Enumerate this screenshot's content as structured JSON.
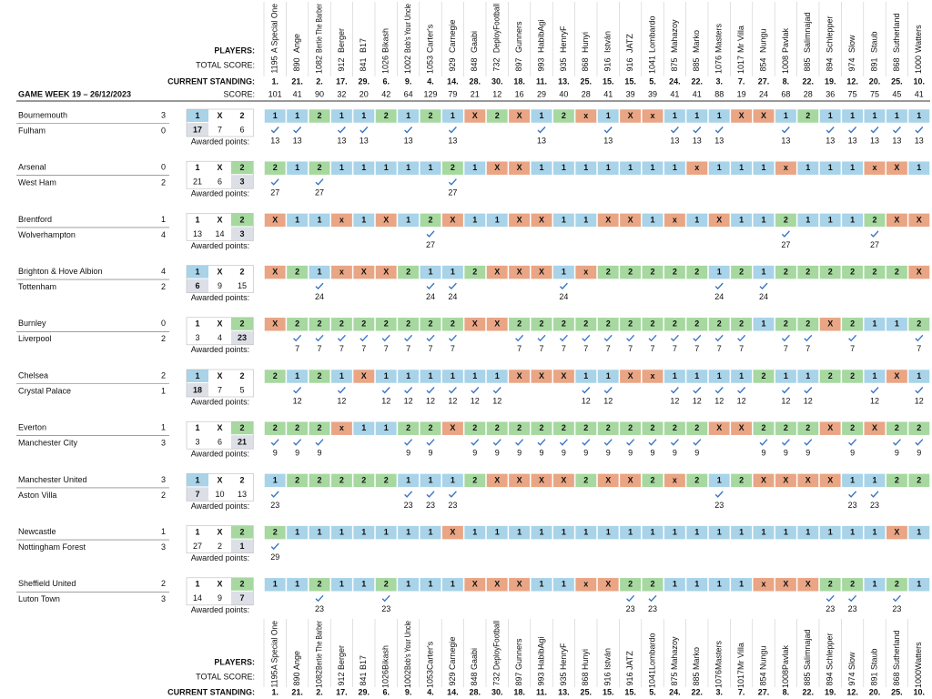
{
  "header": {
    "players_label": "PLAYERS:",
    "total_score_label": "TOTAL SCORE:",
    "standing_label": "CURRENT STANDING:",
    "game_week": "GAME WEEK 19 – 26/12/2023",
    "score_label": "SCORE:",
    "odds_labels": [
      "1",
      "X",
      "2"
    ],
    "awarded_label": "Awarded points:"
  },
  "players": [
    {
      "name": "A Special One",
      "total": 1195,
      "standing": "1.",
      "score": 101
    },
    {
      "name": "Ange",
      "total": 890,
      "standing": "21.",
      "score": 41
    },
    {
      "name": "Bertie The Barber",
      "total": 1082,
      "standing": "2.",
      "score": 90
    },
    {
      "name": "Berger",
      "total": 912,
      "standing": "17.",
      "score": 32
    },
    {
      "name": "B17",
      "total": 841,
      "standing": "29.",
      "score": 20
    },
    {
      "name": "Bikash",
      "total": 1026,
      "standing": "6.",
      "score": 42
    },
    {
      "name": "Bob's Your Uncle",
      "total": 1002,
      "standing": "9.",
      "score": 64
    },
    {
      "name": "Carter's",
      "total": 1053,
      "standing": "4.",
      "score": 129
    },
    {
      "name": "Carnegie",
      "total": 929,
      "standing": "14.",
      "score": 79
    },
    {
      "name": "Gaabi",
      "total": 848,
      "standing": "28.",
      "score": 21
    },
    {
      "name": "DeployFootball",
      "total": 732,
      "standing": "30.",
      "score": 12
    },
    {
      "name": "Gunners",
      "total": 897,
      "standing": "18.",
      "score": 16
    },
    {
      "name": "HabibAgi",
      "total": 993,
      "standing": "11.",
      "score": 29
    },
    {
      "name": "HenryF",
      "total": 935,
      "standing": "13.",
      "score": 40
    },
    {
      "name": "Hunyi",
      "total": 868,
      "standing": "25.",
      "score": 28
    },
    {
      "name": "István",
      "total": 916,
      "standing": "15.",
      "score": 41
    },
    {
      "name": "JATZ",
      "total": 916,
      "standing": "15.",
      "score": 39
    },
    {
      "name": "Lombardo",
      "total": 1041,
      "standing": "5.",
      "score": 39
    },
    {
      "name": "Mahazoy",
      "total": 875,
      "standing": "24.",
      "score": 41
    },
    {
      "name": "Marko",
      "total": 885,
      "standing": "22.",
      "score": 41
    },
    {
      "name": "Masters",
      "total": 1076,
      "standing": "3.",
      "score": 88
    },
    {
      "name": "Mr Villa",
      "total": 1017,
      "standing": "7.",
      "score": 19
    },
    {
      "name": "Nungu",
      "total": 854,
      "standing": "27.",
      "score": 24
    },
    {
      "name": "Pavlak",
      "total": 1008,
      "standing": "8.",
      "score": 68
    },
    {
      "name": "Salimnajad",
      "total": 885,
      "standing": "22.",
      "score": 28
    },
    {
      "name": "Schlepper",
      "total": 894,
      "standing": "19.",
      "score": 36
    },
    {
      "name": "Slow",
      "total": 974,
      "standing": "12.",
      "score": 75
    },
    {
      "name": "Staub",
      "total": 891,
      "standing": "20.",
      "score": 75
    },
    {
      "name": "Sutherland",
      "total": 868,
      "standing": "25.",
      "score": 45
    },
    {
      "name": "Watters",
      "total": 1000,
      "standing": "10.",
      "score": 41
    }
  ],
  "matches": [
    {
      "home": "Bournemouth",
      "home_goals": 3,
      "away": "Fulham",
      "away_goals": 0,
      "odds": [
        17,
        7,
        6
      ],
      "result": "1",
      "points": 13,
      "picks": [
        "1",
        "1",
        "2",
        "1",
        "1",
        "2",
        "1",
        "2",
        "1",
        "X",
        "2",
        "X",
        "1",
        "2",
        "x",
        "1",
        "X",
        "x",
        "1",
        "1",
        "1",
        "X",
        "X",
        "1",
        "2",
        "1",
        "1",
        "1",
        "1",
        "1"
      ]
    },
    {
      "home": "Arsenal",
      "home_goals": 0,
      "away": "West Ham",
      "away_goals": 2,
      "odds": [
        21,
        6,
        3
      ],
      "result": "2",
      "points": 27,
      "picks": [
        "2",
        "1",
        "2",
        "1",
        "1",
        "1",
        "1",
        "1",
        "2",
        "1",
        "X",
        "X",
        "1",
        "1",
        "1",
        "1",
        "1",
        "1",
        "1",
        "x",
        "1",
        "1",
        "1",
        "x",
        "1",
        "1",
        "1",
        "x",
        "X",
        "1"
      ]
    },
    {
      "home": "Brentford",
      "home_goals": 1,
      "away": "Wolverhampton",
      "away_goals": 4,
      "odds": [
        13,
        14,
        3
      ],
      "result": "2",
      "points": 27,
      "picks": [
        "X",
        "1",
        "1",
        "x",
        "1",
        "X",
        "1",
        "2",
        "X",
        "1",
        "1",
        "X",
        "X",
        "1",
        "1",
        "X",
        "X",
        "1",
        "x",
        "1",
        "X",
        "1",
        "1",
        "2",
        "1",
        "1",
        "1",
        "2",
        "X",
        "X"
      ]
    },
    {
      "home": "Brighton & Hove Albion",
      "home_goals": 4,
      "away": "Tottenham",
      "away_goals": 2,
      "odds": [
        6,
        9,
        15
      ],
      "result": "1",
      "points": 24,
      "picks": [
        "X",
        "2",
        "1",
        "x",
        "X",
        "X",
        "2",
        "1",
        "1",
        "2",
        "X",
        "X",
        "X",
        "1",
        "x",
        "2",
        "2",
        "2",
        "2",
        "2",
        "1",
        "2",
        "1",
        "2",
        "2",
        "2",
        "2",
        "2",
        "2",
        "X"
      ]
    },
    {
      "home": "Burnley",
      "home_goals": 0,
      "away": "Liverpool",
      "away_goals": 2,
      "odds": [
        3,
        4,
        23
      ],
      "result": "2",
      "points": 7,
      "picks": [
        "X",
        "2",
        "2",
        "2",
        "2",
        "2",
        "2",
        "2",
        "2",
        "X",
        "X",
        "2",
        "2",
        "2",
        "2",
        "2",
        "2",
        "2",
        "2",
        "2",
        "2",
        "2",
        "1",
        "2",
        "2",
        "X",
        "2",
        "1",
        "1",
        "2"
      ]
    },
    {
      "home": "Chelsea",
      "home_goals": 2,
      "away": "Crystal Palace",
      "away_goals": 1,
      "odds": [
        18,
        7,
        5
      ],
      "result": "1",
      "points": 12,
      "picks": [
        "2",
        "1",
        "2",
        "1",
        "X",
        "1",
        "1",
        "1",
        "1",
        "1",
        "1",
        "X",
        "X",
        "X",
        "1",
        "1",
        "X",
        "x",
        "1",
        "1",
        "1",
        "1",
        "2",
        "1",
        "1",
        "2",
        "2",
        "1",
        "X",
        "1"
      ]
    },
    {
      "home": "Everton",
      "home_goals": 1,
      "away": "Manchester City",
      "away_goals": 3,
      "odds": [
        3,
        6,
        21
      ],
      "result": "2",
      "points": 9,
      "picks": [
        "2",
        "2",
        "2",
        "x",
        "1",
        "1",
        "2",
        "2",
        "X",
        "2",
        "2",
        "2",
        "2",
        "2",
        "2",
        "2",
        "2",
        "2",
        "2",
        "2",
        "X",
        "X",
        "2",
        "2",
        "2",
        "X",
        "2",
        "X",
        "2",
        "2"
      ]
    },
    {
      "home": "Manchester United",
      "home_goals": 3,
      "away": "Aston Villa",
      "away_goals": 2,
      "odds": [
        7,
        10,
        13
      ],
      "result": "1",
      "points": 23,
      "picks": [
        "1",
        "2",
        "2",
        "2",
        "2",
        "2",
        "1",
        "1",
        "1",
        "2",
        "X",
        "X",
        "X",
        "X",
        "2",
        "X",
        "X",
        "2",
        "x",
        "2",
        "1",
        "2",
        "X",
        "X",
        "X",
        "X",
        "1",
        "1",
        "2",
        "2"
      ]
    },
    {
      "home": "Newcastle",
      "home_goals": 1,
      "away": "Nottingham Forest",
      "away_goals": 3,
      "odds": [
        27,
        2,
        1
      ],
      "result": "2",
      "points": 29,
      "picks": [
        "2",
        "1",
        "1",
        "1",
        "1",
        "1",
        "1",
        "1",
        "X",
        "1",
        "1",
        "1",
        "1",
        "1",
        "1",
        "1",
        "1",
        "1",
        "1",
        "1",
        "1",
        "1",
        "1",
        "1",
        "1",
        "1",
        "1",
        "1",
        "X",
        "1"
      ]
    },
    {
      "home": "Sheffield United",
      "home_goals": 2,
      "away": "Luton Town",
      "away_goals": 3,
      "odds": [
        14,
        9,
        7
      ],
      "result": "2",
      "points": 23,
      "picks": [
        "1",
        "1",
        "2",
        "1",
        "1",
        "2",
        "1",
        "1",
        "1",
        "X",
        "X",
        "X",
        "1",
        "1",
        "x",
        "X",
        "2",
        "2",
        "1",
        "1",
        "1",
        "1",
        "x",
        "X",
        "X",
        "2",
        "2",
        "1",
        "2",
        "1"
      ]
    }
  ]
}
